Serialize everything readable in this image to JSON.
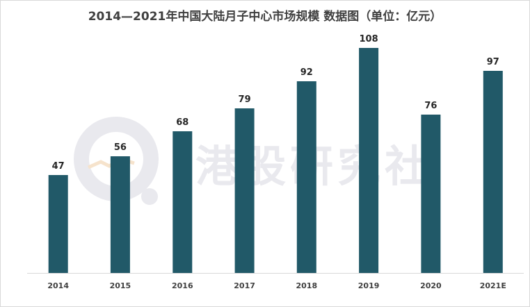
{
  "chart_data": {
    "type": "bar",
    "title": "2014—2021年中国大陆月子中心市场规模 数据图（单位：亿元）",
    "xlabel": "",
    "ylabel": "",
    "categories": [
      "2014",
      "2015",
      "2016",
      "2017",
      "2018",
      "2019",
      "2020",
      "2021E"
    ],
    "values": [
      47,
      56,
      68,
      79,
      92,
      108,
      76,
      97
    ],
    "ylim": [
      0,
      120
    ],
    "grid": false,
    "legend": "none",
    "bar_color": "#215968"
  },
  "watermark": {
    "text": "港股研究社"
  }
}
